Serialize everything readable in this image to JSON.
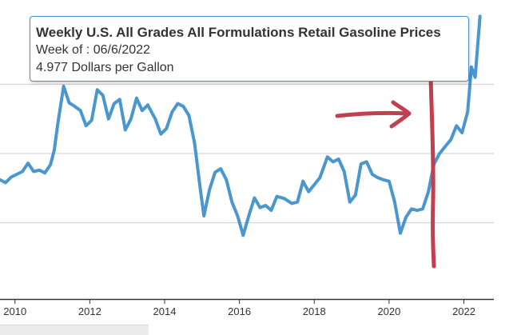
{
  "tooltip": {
    "title": "Weekly U.S. All Grades All Formulations Retail Gasoline Prices",
    "week_line": "Week of : 06/6/2022",
    "value_line": "4.977 Dollars per Gallon"
  },
  "colors": {
    "series": "#4a97cf",
    "annotation": "#c0404f",
    "gridline": "#cccccc",
    "axis": "#333333",
    "tooltip_border": "#4a90c8"
  },
  "chart_data": {
    "type": "line",
    "title": "",
    "xlabel": "",
    "ylabel": "",
    "grid": true,
    "x_ticks": [
      "2010",
      "2012",
      "2014",
      "2016",
      "2018",
      "2020",
      "2022"
    ],
    "xlim": [
      2009.6,
      2022.8
    ],
    "ylim": [
      0.9,
      5.1
    ],
    "gridlines_y": [
      2.0,
      3.0,
      4.0
    ],
    "series": [
      {
        "values": [
          [
            2009.6,
            2.62
          ],
          [
            2009.75,
            2.58
          ],
          [
            2009.9,
            2.66
          ],
          [
            2010.05,
            2.7
          ],
          [
            2010.2,
            2.74
          ],
          [
            2010.35,
            2.86
          ],
          [
            2010.5,
            2.74
          ],
          [
            2010.65,
            2.76
          ],
          [
            2010.8,
            2.72
          ],
          [
            2010.95,
            2.84
          ],
          [
            2011.05,
            3.05
          ],
          [
            2011.15,
            3.45
          ],
          [
            2011.3,
            3.97
          ],
          [
            2011.45,
            3.73
          ],
          [
            2011.6,
            3.68
          ],
          [
            2011.75,
            3.62
          ],
          [
            2011.9,
            3.4
          ],
          [
            2012.05,
            3.48
          ],
          [
            2012.2,
            3.92
          ],
          [
            2012.35,
            3.84
          ],
          [
            2012.5,
            3.5
          ],
          [
            2012.65,
            3.72
          ],
          [
            2012.8,
            3.78
          ],
          [
            2012.95,
            3.34
          ],
          [
            2013.1,
            3.5
          ],
          [
            2013.25,
            3.8
          ],
          [
            2013.4,
            3.62
          ],
          [
            2013.55,
            3.7
          ],
          [
            2013.75,
            3.5
          ],
          [
            2013.9,
            3.28
          ],
          [
            2014.05,
            3.36
          ],
          [
            2014.2,
            3.6
          ],
          [
            2014.35,
            3.72
          ],
          [
            2014.5,
            3.68
          ],
          [
            2014.65,
            3.55
          ],
          [
            2014.8,
            3.15
          ],
          [
            2014.95,
            2.5
          ],
          [
            2015.05,
            2.1
          ],
          [
            2015.2,
            2.48
          ],
          [
            2015.35,
            2.73
          ],
          [
            2015.5,
            2.78
          ],
          [
            2015.65,
            2.62
          ],
          [
            2015.8,
            2.3
          ],
          [
            2015.95,
            2.1
          ],
          [
            2016.1,
            1.82
          ],
          [
            2016.25,
            2.1
          ],
          [
            2016.4,
            2.36
          ],
          [
            2016.55,
            2.22
          ],
          [
            2016.7,
            2.25
          ],
          [
            2016.85,
            2.18
          ],
          [
            2017.0,
            2.38
          ],
          [
            2017.2,
            2.35
          ],
          [
            2017.4,
            2.28
          ],
          [
            2017.55,
            2.3
          ],
          [
            2017.7,
            2.6
          ],
          [
            2017.85,
            2.45
          ],
          [
            2018.0,
            2.55
          ],
          [
            2018.15,
            2.65
          ],
          [
            2018.35,
            2.95
          ],
          [
            2018.5,
            2.88
          ],
          [
            2018.65,
            2.92
          ],
          [
            2018.8,
            2.74
          ],
          [
            2018.95,
            2.3
          ],
          [
            2019.1,
            2.4
          ],
          [
            2019.25,
            2.85
          ],
          [
            2019.4,
            2.88
          ],
          [
            2019.55,
            2.7
          ],
          [
            2019.7,
            2.65
          ],
          [
            2019.85,
            2.62
          ],
          [
            2020.0,
            2.6
          ],
          [
            2020.15,
            2.3
          ],
          [
            2020.3,
            1.85
          ],
          [
            2020.45,
            2.08
          ],
          [
            2020.6,
            2.2
          ],
          [
            2020.75,
            2.18
          ],
          [
            2020.9,
            2.2
          ],
          [
            2021.05,
            2.45
          ],
          [
            2021.2,
            2.85
          ],
          [
            2021.35,
            3.0
          ],
          [
            2021.5,
            3.1
          ],
          [
            2021.65,
            3.2
          ],
          [
            2021.8,
            3.4
          ],
          [
            2021.95,
            3.3
          ],
          [
            2022.1,
            3.6
          ],
          [
            2022.2,
            4.25
          ],
          [
            2022.3,
            4.1
          ],
          [
            2022.43,
            4.98
          ]
        ]
      }
    ]
  }
}
